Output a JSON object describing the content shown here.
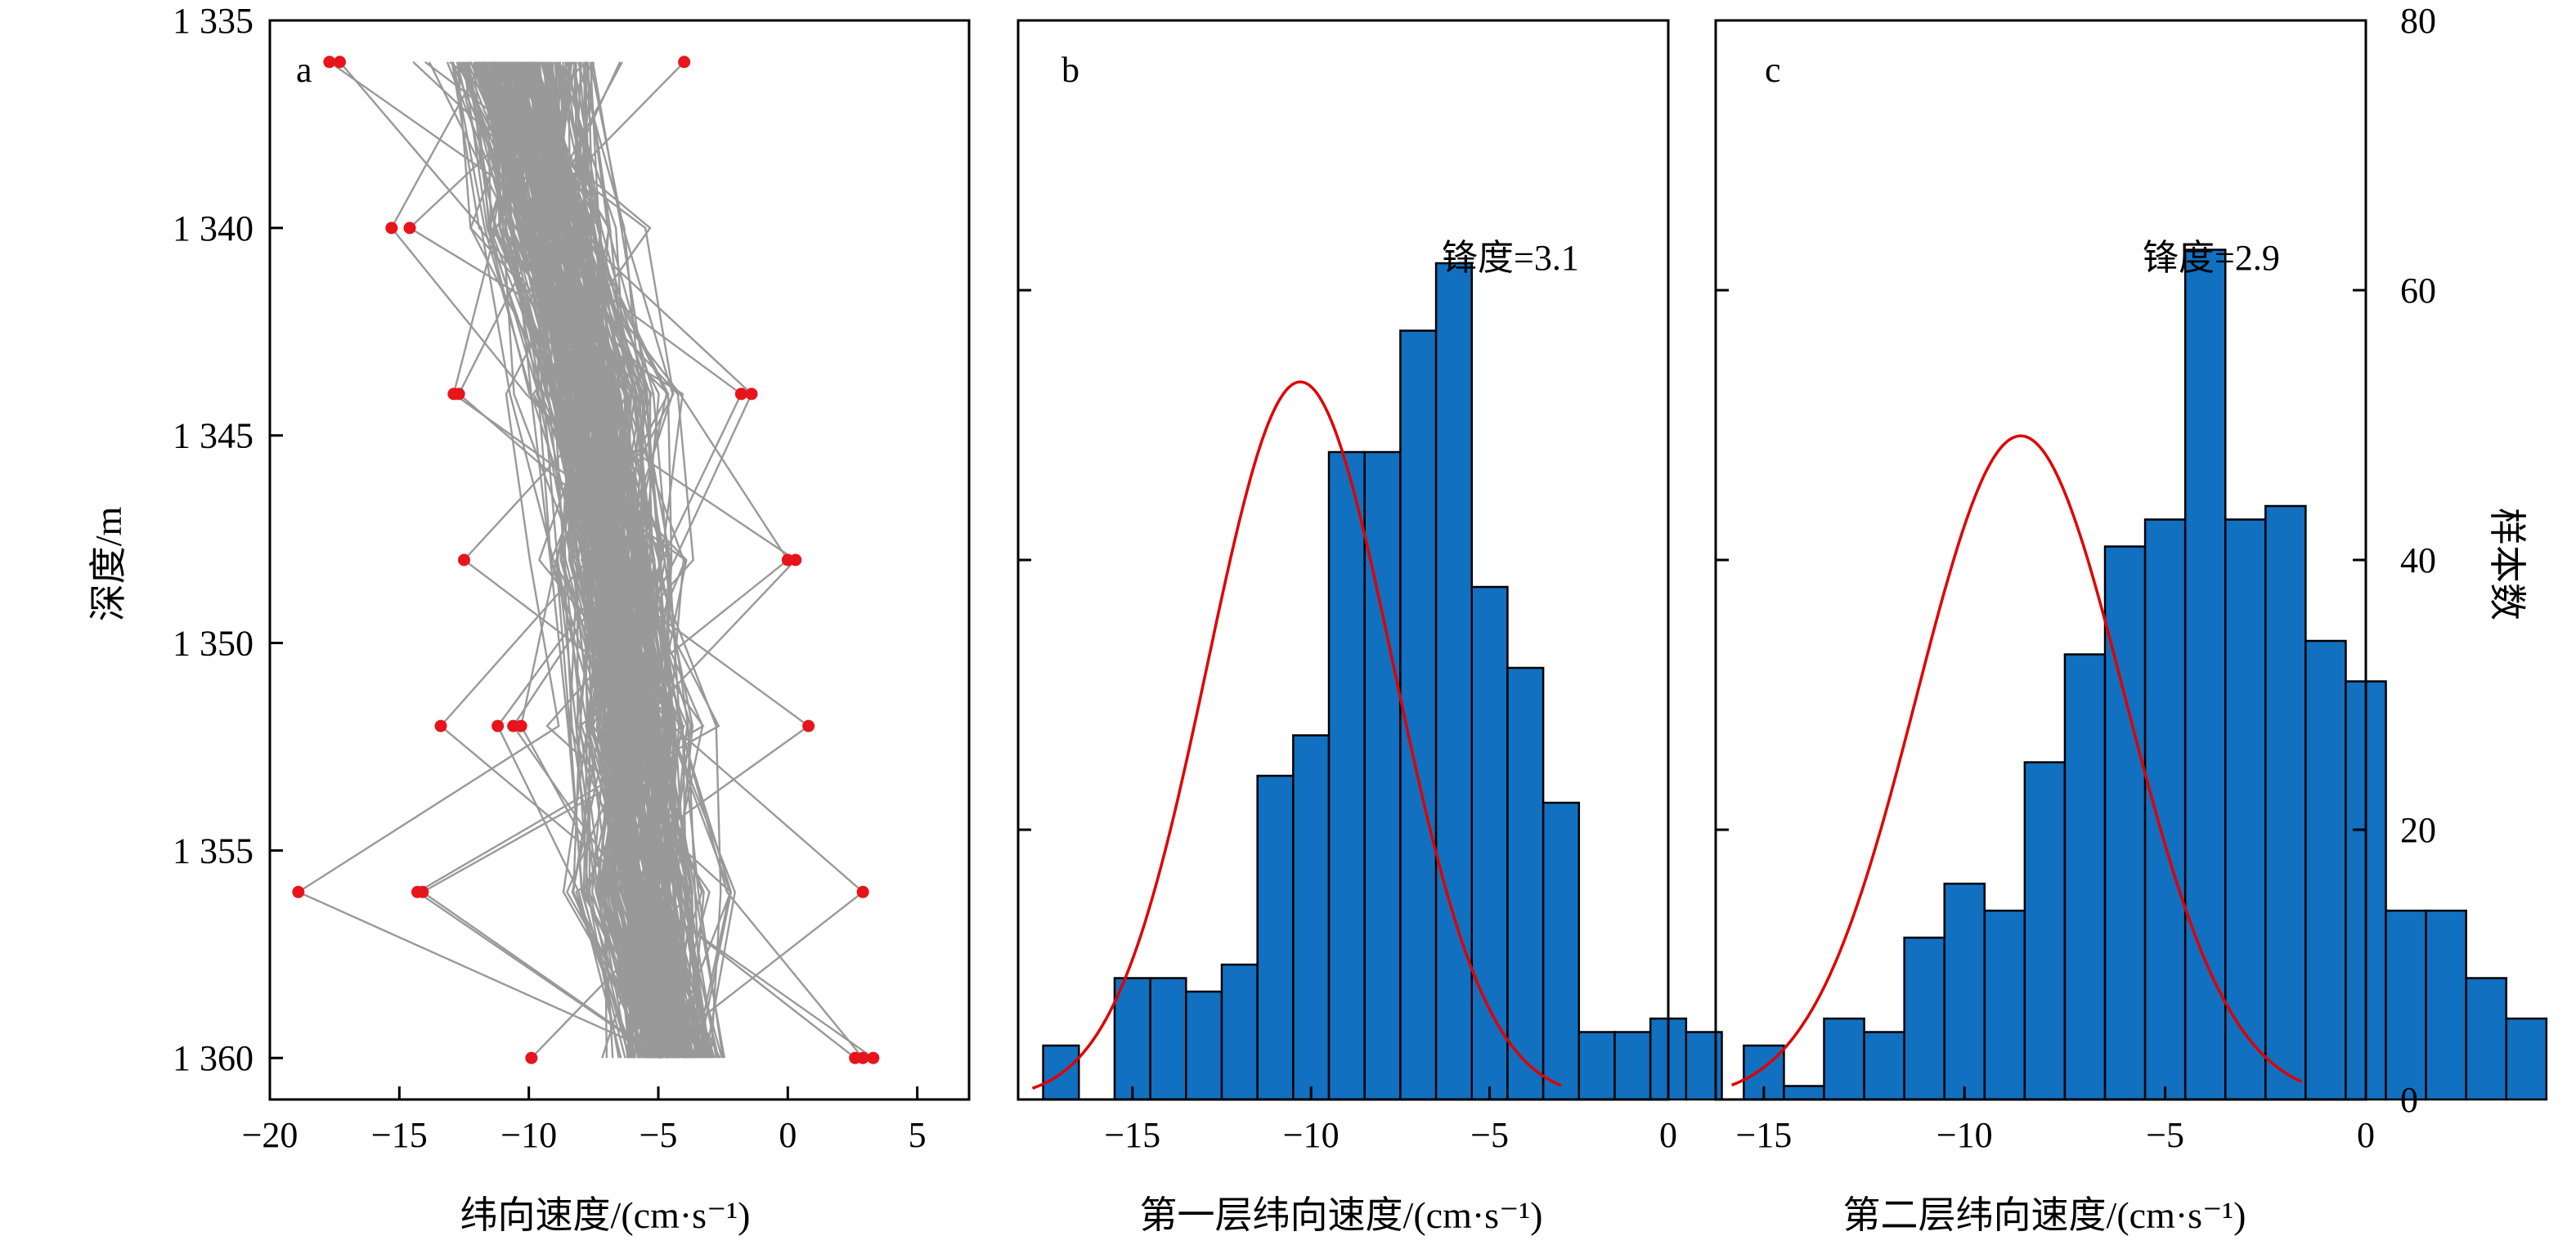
{
  "figure": {
    "panel_a": {
      "letter": "a",
      "xlabel": "纬向速度/(cm·s⁻¹)",
      "ylabel": "深度/m"
    },
    "panel_b": {
      "letter": "b",
      "xlabel": "第一层纬向速度/(cm·s⁻¹)",
      "kurtosis": "锋度=3.1"
    },
    "panel_c": {
      "letter": "c",
      "xlabel": "第二层纬向速度/(cm·s⁻¹)",
      "kurtosis": "锋度=2.9",
      "right_ylabel": "样本数"
    }
  },
  "colors": {
    "profile_line": "#999999",
    "outlier_point": "#e8141b",
    "bar_fill": "#1170c0",
    "bar_edge": "#000000",
    "fit_curve": "#e00000"
  },
  "chart_data": [
    {
      "type": "line",
      "panel": "a",
      "xlabel": "纬向速度/(cm·s⁻¹)",
      "ylabel": "深度/m",
      "xlim": [
        -20,
        7
      ],
      "ylim": [
        1361,
        1335
      ],
      "x_ticks": [
        -20,
        -15,
        -10,
        -5,
        0,
        5
      ],
      "x_tick_labels": [
        "−20",
        "−15",
        "−10",
        "−5",
        "0",
        "5"
      ],
      "y_ticks": [
        1335,
        1340,
        1345,
        1350,
        1355,
        1360
      ],
      "y_tick_labels": [
        "1 335",
        "1 340",
        "1 345",
        "1 350",
        "1 355",
        "1 360"
      ],
      "depths": [
        1336,
        1340,
        1344,
        1348,
        1352,
        1356,
        1360
      ],
      "profile_band": {
        "min": [
          -16.5,
          -14.5,
          -12.5,
          -11.5,
          -11.0,
          -10.5,
          -8.5
        ],
        "max": [
          -4.5,
          -3.5,
          -2.5,
          -2.0,
          -1.0,
          -0.5,
          -0.5
        ]
      },
      "profiles_count": 220,
      "outliers": [
        {
          "x": -17.7,
          "depth": 1336
        },
        {
          "x": -17.3,
          "depth": 1336
        },
        {
          "x": -4.0,
          "depth": 1336
        },
        {
          "x": -15.3,
          "depth": 1340
        },
        {
          "x": -14.6,
          "depth": 1340
        },
        {
          "x": -12.9,
          "depth": 1344
        },
        {
          "x": -12.7,
          "depth": 1344
        },
        {
          "x": -1.8,
          "depth": 1344
        },
        {
          "x": -1.4,
          "depth": 1344
        },
        {
          "x": -12.5,
          "depth": 1348
        },
        {
          "x": 0.0,
          "depth": 1348
        },
        {
          "x": 0.3,
          "depth": 1348
        },
        {
          "x": -13.4,
          "depth": 1352
        },
        {
          "x": -11.2,
          "depth": 1352
        },
        {
          "x": -10.6,
          "depth": 1352
        },
        {
          "x": -10.3,
          "depth": 1352
        },
        {
          "x": 0.8,
          "depth": 1352
        },
        {
          "x": -18.9,
          "depth": 1356
        },
        {
          "x": -14.3,
          "depth": 1356
        },
        {
          "x": -14.1,
          "depth": 1356
        },
        {
          "x": 2.9,
          "depth": 1356
        },
        {
          "x": -9.9,
          "depth": 1360
        },
        {
          "x": 2.6,
          "depth": 1360
        },
        {
          "x": 2.9,
          "depth": 1360
        },
        {
          "x": 3.3,
          "depth": 1360
        }
      ]
    },
    {
      "type": "bar",
      "panel": "b",
      "xlabel": "第一层纬向速度/(cm·s⁻¹)",
      "annotation": "锋度=3.1",
      "xlim": [
        -18.2,
        0
      ],
      "ylim": [
        0,
        80
      ],
      "x_ticks": [
        -15,
        -10,
        -5,
        0
      ],
      "x_tick_labels": [
        "−15",
        "−10",
        "−5",
        "0"
      ],
      "bin_start": -17.5,
      "bin_width": 1.0,
      "values": [
        4,
        0,
        9,
        9,
        8,
        10,
        24,
        27,
        48,
        48,
        57,
        62,
        38,
        32,
        22,
        5,
        5,
        6,
        5
      ],
      "fit": {
        "mean": -10.3,
        "sd": 2.6,
        "peak": 53.2,
        "x_range": [
          -17.8,
          -3.0
        ]
      }
    },
    {
      "type": "bar",
      "panel": "c",
      "xlabel": "第二层纬向速度/(cm·s⁻¹)",
      "annotation": "锋度=2.9",
      "ylabel": "样本数",
      "xlim": [
        -16.2,
        0
      ],
      "ylim": [
        0,
        80
      ],
      "x_ticks": [
        -15,
        -10,
        -5,
        0
      ],
      "x_tick_labels": [
        "−15",
        "−10",
        "−5",
        "0"
      ],
      "y_ticks": [
        0,
        20,
        40,
        60,
        80
      ],
      "y_tick_labels": [
        "0",
        "20",
        "40",
        "60",
        "80"
      ],
      "bin_start": -15.5,
      "bin_width": 1.0,
      "values": [
        4,
        1,
        6,
        5,
        12,
        16,
        14,
        25,
        33,
        41,
        43,
        63,
        43,
        44,
        34,
        31,
        14,
        14,
        9,
        6
      ],
      "fit": {
        "mean": -8.6,
        "sd": 2.6,
        "peak": 49.2,
        "x_range": [
          -15.8,
          -1.6
        ]
      }
    }
  ]
}
